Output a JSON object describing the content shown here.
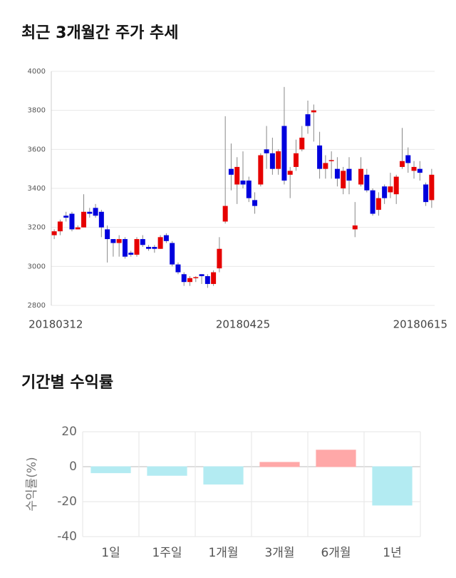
{
  "chart_data": [
    {
      "type": "candlestick",
      "title": "최근 3개월간 주가 추세",
      "categories": [
        "20180312",
        null,
        null,
        null,
        null,
        null,
        null,
        null,
        null,
        null,
        null,
        null,
        null,
        null,
        null,
        null,
        null,
        null,
        null,
        null,
        null,
        null,
        null,
        null,
        null,
        null,
        null,
        null,
        null,
        null,
        null,
        null,
        "20180425",
        null,
        null,
        null,
        null,
        null,
        null,
        null,
        null,
        null,
        null,
        null,
        null,
        null,
        null,
        null,
        null,
        null,
        null,
        null,
        null,
        null,
        null,
        null,
        null,
        null,
        null,
        null,
        null,
        null,
        null,
        null,
        "20180615"
      ],
      "open": [
        3160,
        3180,
        3260,
        3270,
        3190,
        3200,
        3280,
        3300,
        3280,
        3190,
        3140,
        3120,
        3140,
        3070,
        3060,
        3140,
        3100,
        3100,
        3090,
        3160,
        3120,
        3010,
        2960,
        2920,
        2940,
        2960,
        2950,
        2910,
        2990,
        3230,
        3500,
        3420,
        3440,
        3440,
        3340,
        3420,
        3600,
        3580,
        3500,
        3720,
        3470,
        3510,
        3600,
        3780,
        3790,
        3620,
        3500,
        3540,
        3500,
        3400,
        3500,
        3190,
        3420,
        3470,
        3390,
        3290,
        3410,
        3380,
        3370,
        3510,
        3570,
        3490,
        3500,
        3420,
        3340
      ],
      "high": [
        3190,
        3240,
        3280,
        3280,
        3210,
        3370,
        3300,
        3320,
        3290,
        3210,
        3140,
        3160,
        3150,
        3080,
        3150,
        3160,
        3110,
        3110,
        3160,
        3170,
        3130,
        3020,
        2970,
        2950,
        2950,
        2960,
        2960,
        2980,
        3150,
        3770,
        3630,
        3560,
        3590,
        3460,
        3380,
        3580,
        3720,
        3660,
        3600,
        3920,
        3510,
        3650,
        3720,
        3850,
        3830,
        3690,
        3570,
        3590,
        3560,
        3510,
        3560,
        3330,
        3560,
        3500,
        3400,
        3380,
        3420,
        3480,
        3470,
        3710,
        3610,
        3540,
        3540,
        3430,
        3500
      ],
      "low": [
        3140,
        3160,
        3230,
        3180,
        3190,
        3200,
        3250,
        3250,
        3150,
        3020,
        3050,
        3050,
        3040,
        3050,
        3050,
        3100,
        3080,
        3070,
        3090,
        3120,
        3000,
        2960,
        2900,
        2900,
        2920,
        2910,
        2890,
        2900,
        2970,
        3220,
        3390,
        3320,
        3400,
        3330,
        3270,
        3410,
        3500,
        3470,
        3470,
        3420,
        3350,
        3490,
        3590,
        3680,
        3640,
        3450,
        3450,
        3450,
        3410,
        3370,
        3370,
        3150,
        3410,
        3380,
        3260,
        3260,
        3320,
        3350,
        3320,
        3500,
        3480,
        3450,
        3440,
        3310,
        3300
      ],
      "close": [
        3180,
        3230,
        3250,
        3190,
        3200,
        3280,
        3270,
        3260,
        3200,
        3140,
        3120,
        3140,
        3050,
        3060,
        3140,
        3110,
        3090,
        3090,
        3150,
        3130,
        3010,
        2970,
        2920,
        2940,
        2945,
        2950,
        2910,
        2970,
        3090,
        3310,
        3470,
        3510,
        3420,
        3350,
        3310,
        3570,
        3580,
        3500,
        3590,
        3440,
        3490,
        3580,
        3660,
        3720,
        3800,
        3500,
        3530,
        3545,
        3450,
        3490,
        3440,
        3210,
        3500,
        3390,
        3270,
        3350,
        3350,
        3410,
        3460,
        3540,
        3530,
        3510,
        3480,
        3330,
        3470
      ],
      "up_color": "#e60000",
      "down_color": "#0000dd",
      "ylim": [
        2800,
        4000
      ],
      "yticks": [
        2800,
        3000,
        3200,
        3400,
        3600,
        3800,
        4000
      ],
      "grid": true
    },
    {
      "type": "bar",
      "title": "기간별 수익률",
      "ylabel": "수익률(%)",
      "categories": [
        "1일",
        "1주일",
        "1개월",
        "3개월",
        "6개월",
        "1년"
      ],
      "values": [
        -3.5,
        -5,
        -10,
        2.5,
        9.5,
        -22
      ],
      "positive_color": "#ffa8a8",
      "negative_color": "#b3ebf2",
      "ylim": [
        -40,
        20
      ],
      "yticks": [
        -40,
        -20,
        0,
        20
      ],
      "grid": true
    }
  ]
}
